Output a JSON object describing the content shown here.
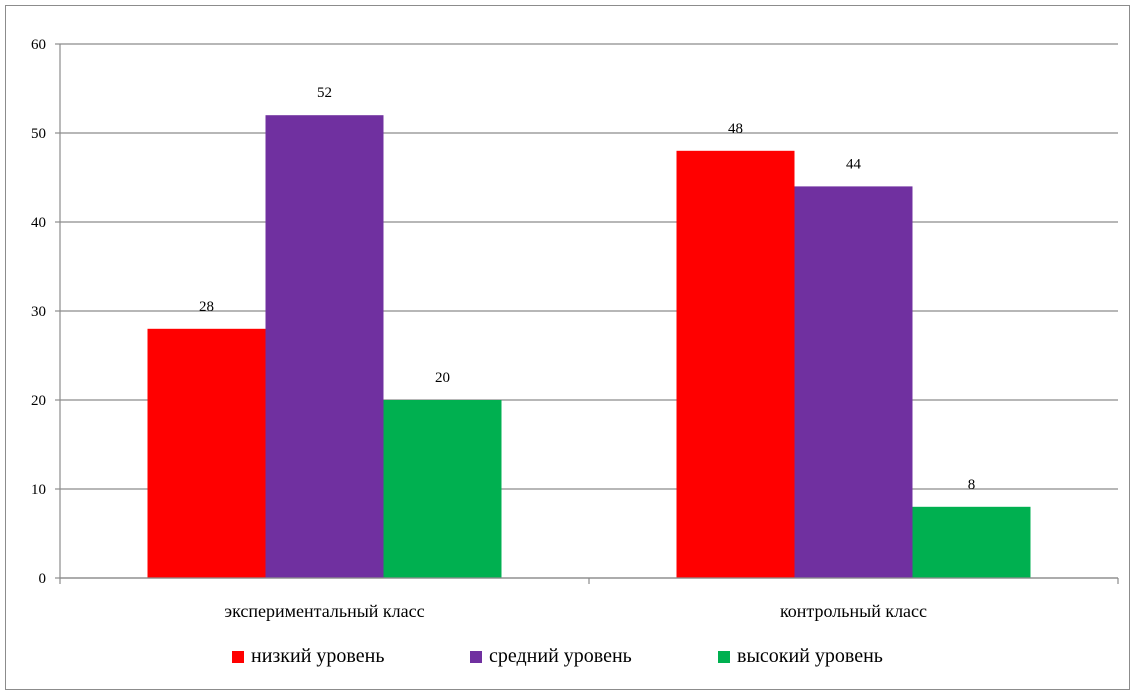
{
  "chart_data": {
    "type": "bar",
    "categories": [
      "экспериментальный класс",
      "контрольный класс"
    ],
    "series": [
      {
        "name": "низкий уровень",
        "values": [
          28,
          48
        ],
        "color": "#ff0000"
      },
      {
        "name": "средний уровень",
        "values": [
          52,
          44
        ],
        "color": "#7030a0"
      },
      {
        "name": "высокий уровень",
        "values": [
          20,
          8
        ],
        "color": "#00b050"
      }
    ],
    "ylim": [
      0,
      60
    ],
    "yticks": [
      0,
      10,
      20,
      30,
      40,
      50,
      60
    ],
    "grid": true,
    "legend_position": "bottom",
    "data_labels": true,
    "title": "",
    "xlabel": "",
    "ylabel": ""
  }
}
